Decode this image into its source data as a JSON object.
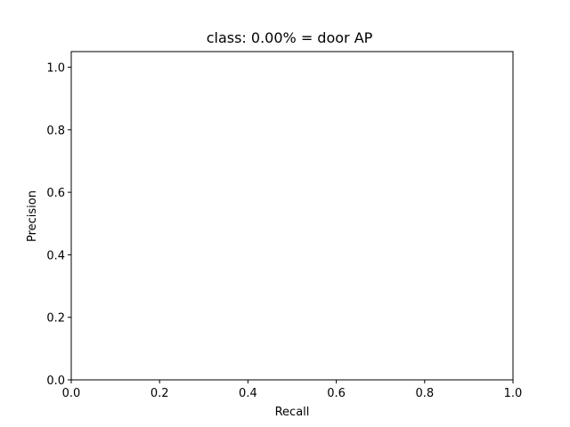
{
  "chart_data": {
    "type": "line",
    "title": "class: 0.00% = door AP",
    "xlabel": "Recall",
    "ylabel": "Precision",
    "xlim": [
      0.0,
      1.0
    ],
    "ylim": [
      0.0,
      1.05
    ],
    "x_ticks": [
      "0.0",
      "0.2",
      "0.4",
      "0.6",
      "0.8",
      "1.0"
    ],
    "y_ticks": [
      "0.0",
      "0.2",
      "0.4",
      "0.6",
      "0.8",
      "1.0"
    ],
    "x": [],
    "y": [],
    "grid": false,
    "legend": null
  },
  "colors": {
    "axes": "#000000",
    "background": "#ffffff"
  }
}
